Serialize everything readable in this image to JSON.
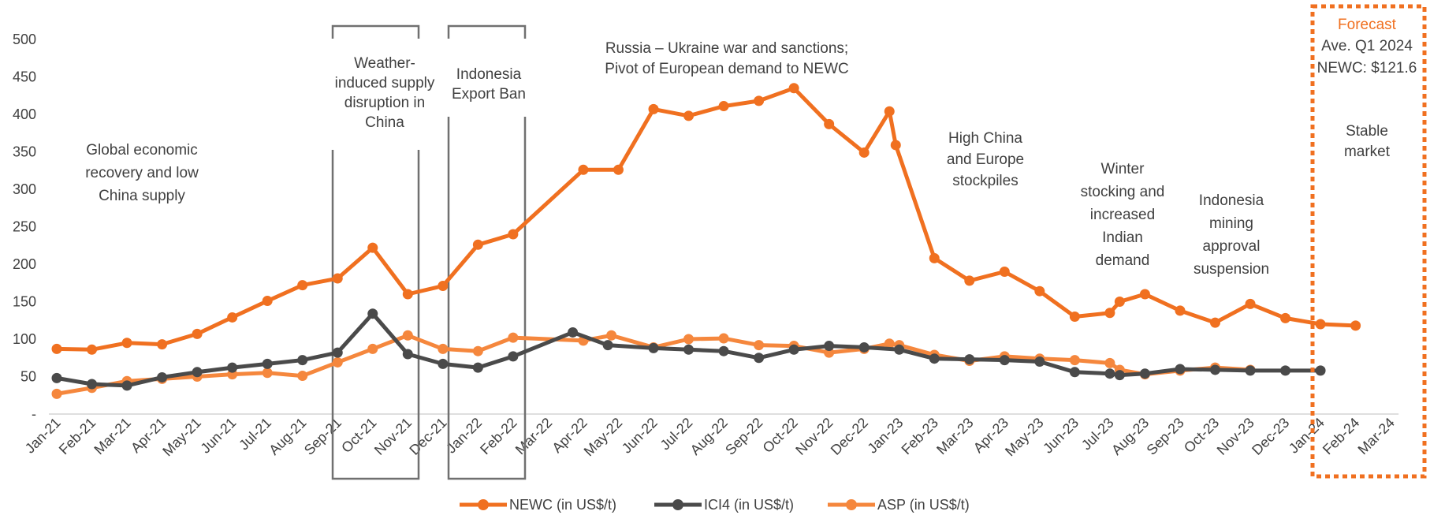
{
  "chart_data": {
    "type": "line",
    "title": "",
    "xlabel": "",
    "ylabel": "",
    "ylim": [
      0,
      500
    ],
    "yticks": [
      {
        "label": "-",
        "value": 0
      },
      {
        "label": "50",
        "value": 50
      },
      {
        "label": "100",
        "value": 100
      },
      {
        "label": "150",
        "value": 150
      },
      {
        "label": "200",
        "value": 200
      },
      {
        "label": "250",
        "value": 250
      },
      {
        "label": "300",
        "value": 300
      },
      {
        "label": "350",
        "value": 350
      },
      {
        "label": "400",
        "value": 400
      },
      {
        "label": "450",
        "value": 450
      },
      {
        "label": "500",
        "value": 500
      }
    ],
    "categories": [
      "Jan-21",
      "Feb-21",
      "Mar-21",
      "Apr-21",
      "May-21",
      "Jun-21",
      "Jul-21",
      "Aug-21",
      "Sep-21",
      "Oct-21",
      "Nov-21",
      "Dec-21",
      "Jan-22",
      "Feb-22",
      "Mar-22",
      "Apr-22",
      "May-22",
      "Jun-22",
      "Jul-22",
      "Aug-22",
      "Sep-22",
      "Oct-22",
      "Nov-22",
      "Dec-22",
      "Jan-23",
      "Feb-23",
      "Mar-23",
      "Apr-23",
      "May-23",
      "Jun-23",
      "Jul-23",
      "Aug-23",
      "Sep-23",
      "Oct-23",
      "Nov-23",
      "Dec-23",
      "Jan-24",
      "Feb-24",
      "Mar-24"
    ],
    "grid": false,
    "legend_position": "bottom",
    "series": [
      {
        "name": "NEWC (in US$/t)",
        "color": "#f07020",
        "points": [
          [
            0,
            87
          ],
          [
            1,
            86
          ],
          [
            2,
            95
          ],
          [
            3,
            93
          ],
          [
            4,
            107
          ],
          [
            5,
            129
          ],
          [
            6,
            151
          ],
          [
            7,
            172
          ],
          [
            8,
            181
          ],
          [
            9,
            222
          ],
          [
            10,
            160
          ],
          [
            11,
            171
          ],
          [
            12,
            226
          ],
          [
            13,
            240
          ],
          [
            15,
            326
          ],
          [
            16,
            326
          ],
          [
            17,
            407
          ],
          [
            18,
            398
          ],
          [
            19,
            411
          ],
          [
            20,
            418
          ],
          [
            21,
            435
          ],
          [
            22,
            387
          ],
          [
            23,
            349
          ],
          [
            23.72,
            404
          ],
          [
            23.9,
            359
          ],
          [
            25,
            208
          ],
          [
            26,
            178
          ],
          [
            27,
            190
          ],
          [
            28,
            164
          ],
          [
            29,
            130
          ],
          [
            30,
            135
          ],
          [
            30.28,
            150
          ],
          [
            31,
            160
          ],
          [
            32,
            138
          ],
          [
            33,
            122
          ],
          [
            34,
            147
          ],
          [
            35,
            128
          ],
          [
            36,
            120
          ],
          [
            37,
            118
          ]
        ]
      },
      {
        "name": "ICI4 (in US$/t)",
        "color": "#4a4a4a",
        "points": [
          [
            0,
            48
          ],
          [
            1,
            40
          ],
          [
            2,
            38
          ],
          [
            3,
            49
          ],
          [
            4,
            56
          ],
          [
            5,
            62
          ],
          [
            6,
            67
          ],
          [
            7,
            72
          ],
          [
            8,
            82
          ],
          [
            9,
            134
          ],
          [
            10,
            80
          ],
          [
            11,
            67
          ],
          [
            12,
            62
          ],
          [
            13,
            77
          ],
          [
            14.7,
            109
          ],
          [
            15.7,
            92
          ],
          [
            17,
            88
          ],
          [
            18,
            86
          ],
          [
            19,
            84
          ],
          [
            20,
            75
          ],
          [
            21,
            86
          ],
          [
            22,
            91
          ],
          [
            23,
            89
          ],
          [
            24,
            86
          ],
          [
            25,
            74
          ],
          [
            26,
            73
          ],
          [
            27,
            72
          ],
          [
            28,
            70
          ],
          [
            29,
            56
          ],
          [
            30,
            54
          ],
          [
            30.28,
            52
          ],
          [
            31,
            54
          ],
          [
            32,
            60
          ],
          [
            33,
            59
          ],
          [
            34,
            58
          ],
          [
            35,
            58
          ],
          [
            36,
            58
          ]
        ]
      },
      {
        "name": "ASP (in US$/t)",
        "color": "#f5873d",
        "points": [
          [
            0,
            27
          ],
          [
            1,
            35
          ],
          [
            2,
            44
          ],
          [
            3,
            47
          ],
          [
            4,
            50
          ],
          [
            5,
            53
          ],
          [
            6,
            55
          ],
          [
            7,
            51
          ],
          [
            8,
            69
          ],
          [
            9,
            87
          ],
          [
            10,
            105
          ],
          [
            11,
            87
          ],
          [
            12,
            84
          ],
          [
            13,
            102
          ],
          [
            15,
            98
          ],
          [
            15.8,
            105
          ],
          [
            17,
            89
          ],
          [
            18,
            100
          ],
          [
            19,
            101
          ],
          [
            20,
            92
          ],
          [
            21,
            91
          ],
          [
            22,
            82
          ],
          [
            23,
            87
          ],
          [
            23.72,
            94
          ],
          [
            24,
            92
          ],
          [
            25,
            79
          ],
          [
            26,
            71
          ],
          [
            27,
            77
          ],
          [
            28,
            74
          ],
          [
            29,
            72
          ],
          [
            30,
            68
          ],
          [
            30.28,
            59
          ],
          [
            31,
            53
          ],
          [
            32,
            58
          ],
          [
            33,
            62
          ],
          [
            34,
            59
          ]
        ]
      }
    ],
    "annotations": [
      {
        "lines": [
          "Global economic",
          "recovery and low",
          "China supply"
        ]
      },
      {
        "lines": [
          "Weather-",
          "induced supply",
          "disruption in",
          "China"
        ]
      },
      {
        "lines": [
          "Indonesia",
          "Export Ban"
        ]
      },
      {
        "lines": [
          "Russia – Ukraine war and sanctions;",
          "Pivot of European demand to NEWC"
        ]
      },
      {
        "lines": [
          "High China",
          "and Europe",
          "stockpiles"
        ]
      },
      {
        "lines": [
          "Winter",
          "stocking and",
          "increased",
          "Indian",
          "demand"
        ]
      },
      {
        "lines": [
          "Indonesia",
          "mining",
          "approval",
          "suspension"
        ]
      },
      {
        "lines": [
          "Stable",
          "market"
        ]
      }
    ],
    "forecast_box": {
      "title": "Forecast",
      "lines": [
        "Ave. Q1 2024",
        "NEWC: $121.6"
      ],
      "color": "#f07020"
    }
  }
}
